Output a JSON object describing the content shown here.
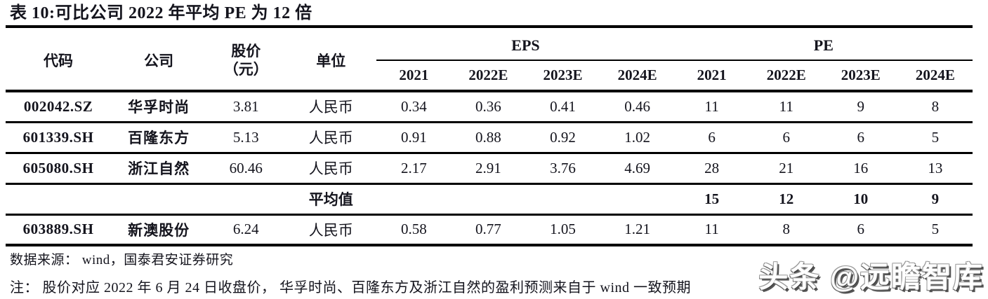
{
  "title": "表 10:可比公司 2022 年平均 PE 为 12 倍",
  "table": {
    "col_headers": {
      "code": "代码",
      "company": "公司",
      "price_line1": "股价",
      "price_line2": "（元）",
      "unit": "单位"
    },
    "groups": {
      "eps": "EPS",
      "pe": "PE"
    },
    "year_headers": [
      "2021",
      "2022E",
      "2023E",
      "2024E"
    ],
    "rows": [
      {
        "code": "002042.SZ",
        "company": "华孚时尚",
        "price": "3.81",
        "unit": "人民币",
        "eps": [
          "0.34",
          "0.36",
          "0.41",
          "0.46"
        ],
        "pe": [
          "11",
          "11",
          "9",
          "8"
        ]
      },
      {
        "code": "601339.SH",
        "company": "百隆东方",
        "price": "5.13",
        "unit": "人民币",
        "eps": [
          "0.91",
          "0.88",
          "0.92",
          "1.02"
        ],
        "pe": [
          "6",
          "6",
          "6",
          "5"
        ]
      },
      {
        "code": "605080.SH",
        "company": "浙江自然",
        "price": "60.46",
        "unit": "人民币",
        "eps": [
          "2.17",
          "2.91",
          "3.76",
          "4.69"
        ],
        "pe": [
          "28",
          "21",
          "16",
          "13"
        ]
      },
      {
        "average_label": "平均值",
        "pe": [
          "15",
          "12",
          "10",
          "9"
        ]
      },
      {
        "code": "603889.SH",
        "company": "新澳股份",
        "price": "6.24",
        "unit": "人民币",
        "eps": [
          "0.58",
          "0.77",
          "1.05",
          "1.21"
        ],
        "pe": [
          "11",
          "8",
          "6",
          "5"
        ]
      }
    ]
  },
  "footer": {
    "source": "数据来源： wind，国泰君安证券研究",
    "note": "注： 股价对应 2022 年 6 月 24 日收盘价， 华孚时尚、百隆东方及浙江自然的盈利预测来自于 wind 一致预期"
  },
  "watermark": "头条 @远瞻智库",
  "colors": {
    "text": "#14141d",
    "line": "#000000",
    "background": "#ffffff",
    "watermark_fill": "#ffffff"
  }
}
